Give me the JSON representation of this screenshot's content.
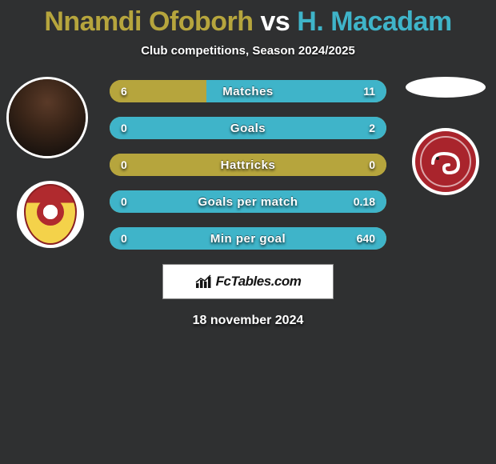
{
  "title": {
    "player_a": "Nnamdi Ofoborh",
    "vs": "vs",
    "player_b": "H. Macadam",
    "player_a_color": "#b6a53d",
    "player_b_color": "#3fb4c9"
  },
  "subtitle": "Club competitions, Season 2024/2025",
  "colors": {
    "left": "#b6a53d",
    "right": "#3fb4c9",
    "background": "#2f3031"
  },
  "bars": [
    {
      "label": "Matches",
      "left_val": "6",
      "right_val": "11",
      "left_pct": 35,
      "right_pct": 65
    },
    {
      "label": "Goals",
      "left_val": "0",
      "right_val": "2",
      "left_pct": 0,
      "right_pct": 100
    },
    {
      "label": "Hattricks",
      "left_val": "0",
      "right_val": "0",
      "left_pct": 100,
      "right_pct": 0
    },
    {
      "label": "Goals per match",
      "left_val": "0",
      "right_val": "0.18",
      "left_pct": 0,
      "right_pct": 100
    },
    {
      "label": "Min per goal",
      "left_val": "0",
      "right_val": "640",
      "left_pct": 0,
      "right_pct": 100
    }
  ],
  "brand": "FcTables.com",
  "date": "18 november 2024",
  "left_side": {
    "has_player_photo": true,
    "team_badge_primary": "#b02a2e",
    "team_badge_secondary": "#f4d24a"
  },
  "right_side": {
    "has_player_photo": false,
    "team_badge_primary": "#a9242c",
    "team_badge_border": "#ffffff"
  }
}
